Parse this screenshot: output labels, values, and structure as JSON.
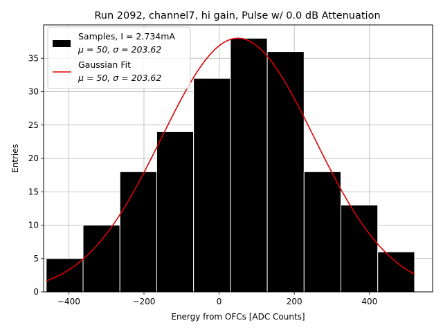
{
  "chart_data": {
    "type": "bar",
    "title": "Run 2092, channel7, hi gain, Pulse w/ 0.0 dB Attenuation",
    "xlabel": "Energy from OFCs [ADC Counts]",
    "ylabel": "Entries",
    "xlim": [
      -467,
      568
    ],
    "ylim": [
      0,
      40
    ],
    "xticks": [
      -400,
      -200,
      0,
      200,
      400
    ],
    "yticks": [
      0,
      5,
      10,
      15,
      20,
      25,
      30,
      35
    ],
    "grid": true,
    "bin_edges": [
      -460,
      -362,
      -264,
      -166,
      -68,
      30,
      128,
      226,
      324,
      422,
      520
    ],
    "values": [
      5,
      10,
      18,
      24,
      32,
      38,
      36,
      18,
      13,
      6
    ],
    "gaussian_fit": {
      "mu": 50,
      "sigma": 203.62,
      "amplitude": 38,
      "x_range": [
        -460,
        520
      ]
    },
    "colors": {
      "bars": "#000000",
      "bar_edge": "#ffffff",
      "fit": "#e00000",
      "grid": "#b0b0b0"
    },
    "legend": {
      "placement": "top-left",
      "entries": [
        {
          "line1": "Samples, I = 2.734mA",
          "line2": "μ = 50, σ = 203.62"
        },
        {
          "line1": "Gaussian Fit",
          "line2": "μ = 50, σ = 203.62"
        }
      ]
    }
  }
}
